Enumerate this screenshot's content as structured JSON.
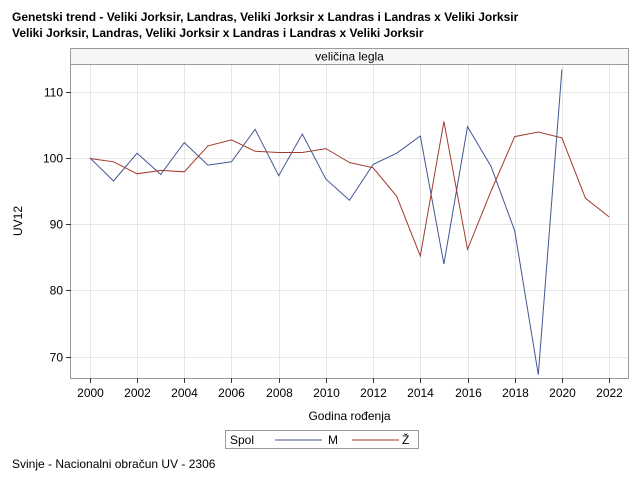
{
  "header": {
    "title_line1": "Genetski trend - Veliki Jorksir, Landras, Veliki Jorksir x Landras i Landras x Veliki Jorksir",
    "title_line2": "Veliki Jorksir, Landras, Veliki Jorksir x Landras i Landras x Veliki Jorksir"
  },
  "footnote": "Svinje - Nacionalni obračun UV - 2306",
  "chart_data": {
    "type": "line",
    "panel_title": "veličina legla",
    "xlabel": "Godina rođenja",
    "ylabel": "UV12",
    "xlim": [
      1999.2,
      2022.8
    ],
    "ylim": [
      66.8,
      114
    ],
    "x_ticks": [
      2000,
      2002,
      2004,
      2006,
      2008,
      2010,
      2012,
      2014,
      2016,
      2018,
      2020,
      2022
    ],
    "y_ticks": [
      70,
      80,
      90,
      100,
      110
    ],
    "grid": true,
    "legend_title": "Spol",
    "legend_position": "bottom-center",
    "series": [
      {
        "name": "M",
        "color": "#445694",
        "x": [
          2000,
          2001,
          2002,
          2003,
          2004,
          2005,
          2006,
          2007,
          2008,
          2009,
          2010,
          2011,
          2012,
          2013,
          2014,
          2015,
          2016,
          2017,
          2018,
          2019,
          2020
        ],
        "values": [
          100.0,
          96.5,
          100.7,
          97.5,
          102.3,
          98.9,
          99.4,
          104.3,
          97.3,
          103.6,
          96.8,
          93.6,
          99.0,
          100.7,
          103.3,
          84.0,
          104.7,
          98.7,
          89.0,
          67.3,
          113.3
        ]
      },
      {
        "name": "Ž",
        "color": "#A23A2E",
        "x": [
          2000,
          2001,
          2002,
          2003,
          2004,
          2005,
          2006,
          2007,
          2008,
          2009,
          2010,
          2011,
          2012,
          2013,
          2014,
          2015,
          2016,
          2017,
          2018,
          2019,
          2020,
          2021,
          2022
        ],
        "values": [
          99.9,
          99.4,
          97.6,
          98.1,
          97.9,
          101.8,
          102.7,
          101.0,
          100.8,
          100.8,
          101.4,
          99.3,
          98.5,
          94.2,
          85.2,
          105.5,
          86.2,
          95.0,
          103.2,
          103.9,
          103.0,
          93.9,
          91.1
        ]
      }
    ]
  }
}
